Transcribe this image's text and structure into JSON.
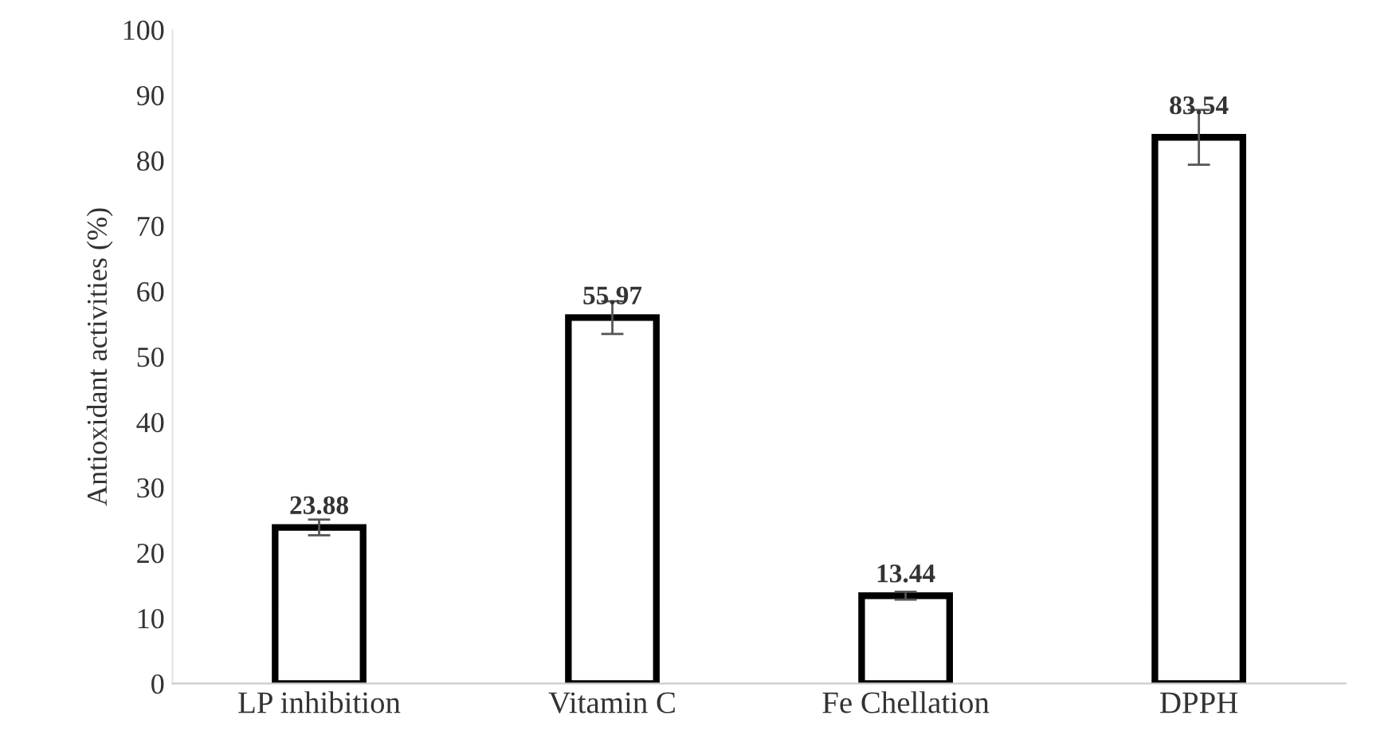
{
  "chart_data": {
    "type": "bar",
    "ylabel": "Antioxidant activities (%)",
    "categories": [
      "LP inhibition",
      "Vitamin C",
      "Fe Chellation",
      "DPPH"
    ],
    "values": [
      23.88,
      55.97,
      13.44,
      83.54
    ],
    "errors": [
      1.2,
      2.5,
      0.6,
      4.2
    ],
    "color": "#ffffff",
    "data_labels": true,
    "ylim": [
      0,
      100
    ],
    "yticks": [
      0,
      10,
      20,
      30,
      40,
      50,
      60,
      70,
      80,
      90,
      100
    ],
    "grid": false,
    "legend": false
  }
}
